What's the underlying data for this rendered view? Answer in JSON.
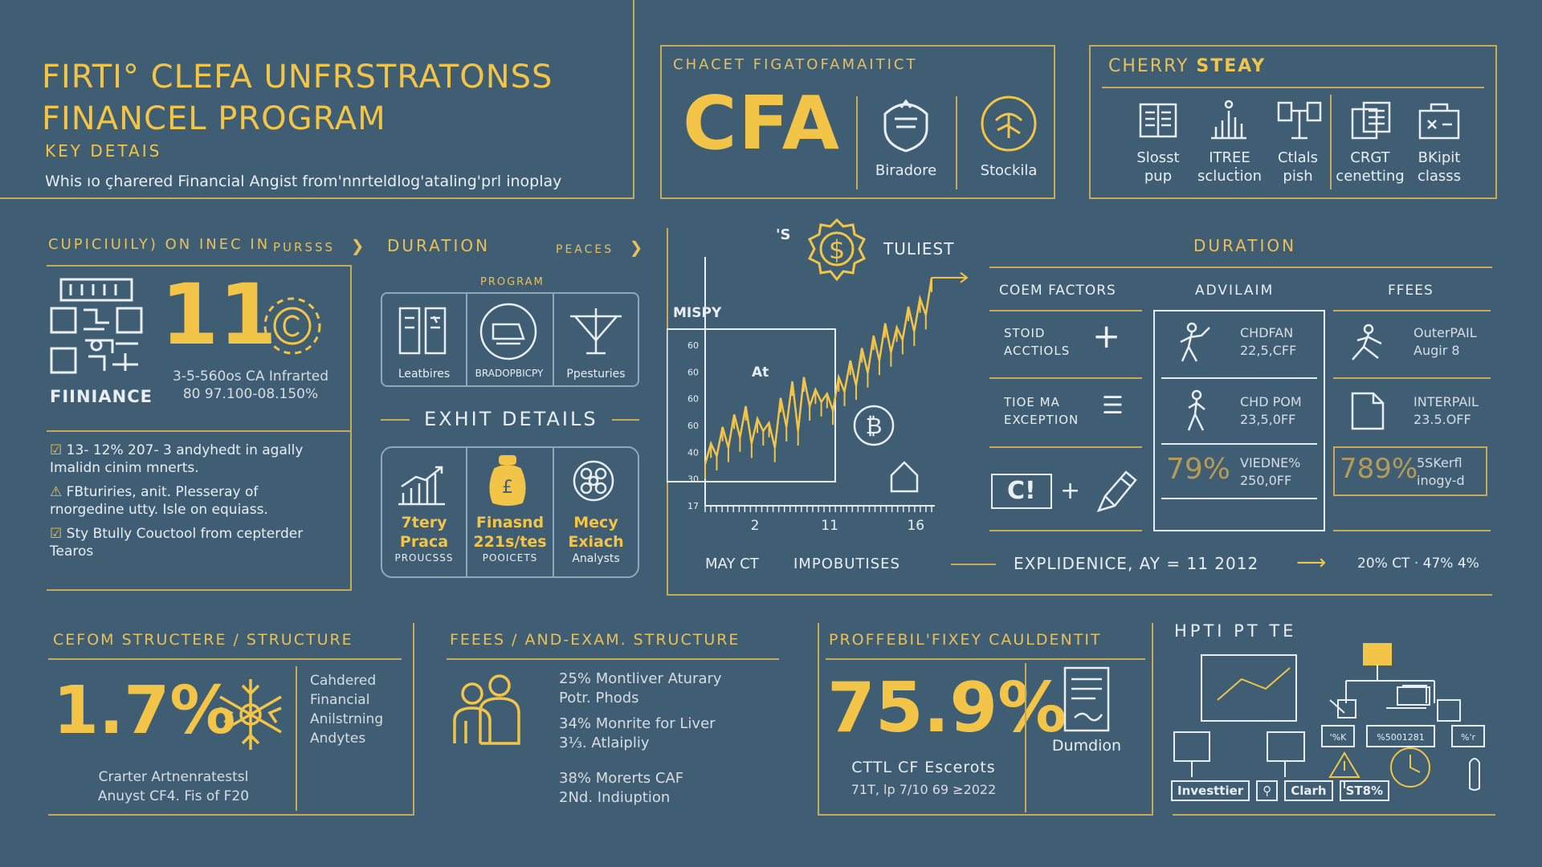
{
  "header": {
    "title_line1": "FIRTI° CLEFA UNFRSTRATONSS",
    "title_line2": "FINANCEL PROGRAM",
    "subtitle": "KEY DETAIS",
    "description": "Whis ıo çharered Financial Angist from'nnrteldlog'ataling'prl inoplay"
  },
  "cfa_panel": {
    "heading": "CHACET FIGATOFAMAITICT",
    "logo": "CFA",
    "items": [
      {
        "icon": "shield-icon",
        "label": "Biradore"
      },
      {
        "icon": "globe-icon",
        "label": "Stockila"
      }
    ]
  },
  "chemistry_panel": {
    "heading_a": "CHERRY",
    "heading_b": "STEAY",
    "items": [
      {
        "icon": "book-icon",
        "line1": "Slosst",
        "line2": "pup"
      },
      {
        "icon": "bar-chart-icon",
        "line1": "ITREE",
        "line2": "sclucṫion"
      },
      {
        "icon": "scale-icon",
        "line1": "Ctlals",
        "line2": "pish"
      },
      {
        "icon": "documents-icon",
        "line1": "CRGT",
        "line2": "cenetting"
      },
      {
        "icon": "case-icon",
        "line1": "BKipit",
        "line2": "classs"
      }
    ]
  },
  "curriculum": {
    "heading": "CUPICIUILY) ON INEC IN",
    "heading_right": "PURSSS",
    "big_number": "11",
    "label": "FIINIANCE",
    "note_line1": "3-5-560os CA Infrarted",
    "note_line2": "80 97.100-08.150%",
    "bullets": [
      {
        "icon": "checkbox-icon",
        "line1": "13- 12% 207- 3 andyhedt in agally",
        "line2": "Imalidn cinim mnerts."
      },
      {
        "icon": "warning-icon",
        "line1": "FBturiries, anit. Plesseray of",
        "line2": "rnorgedine utty. Isle on equiass."
      },
      {
        "icon": "checkbox-icon",
        "line1": "Sty Btully Couctool from cepterder",
        "line2": "Tearos"
      }
    ]
  },
  "duration_left": {
    "heading": "DURATION",
    "heading_right": "PEACES",
    "program_label": "PROGRAM",
    "items": [
      {
        "icon": "columns-icon",
        "label": "Leatbires"
      },
      {
        "icon": "laptop-icon",
        "label": "BRADOPBICPY"
      },
      {
        "icon": "network-icon",
        "label": "Ppesturies"
      }
    ]
  },
  "exhit": {
    "heading": "EXHIT DETAILS",
    "items": [
      {
        "icon": "growth-chart-icon",
        "line1": "7tery",
        "line2": "Praca",
        "line3": "PROUCSSS"
      },
      {
        "icon": "money-bag-icon",
        "line1": "Finasnd",
        "line2": "221s/tes",
        "line3": "POOICETS"
      },
      {
        "icon": "brain-icon",
        "line1": "Mecy",
        "line2": "Exiach",
        "line3": "Analysts"
      }
    ]
  },
  "chart": {
    "top_label_a": "'S",
    "top_label_b": "TULIEST",
    "inner_label": "MISPY",
    "marker_label": "At",
    "y_ticks": [
      "60",
      "60",
      "60",
      "60",
      "40",
      "30",
      "17"
    ],
    "x_ticks": [
      "2",
      "11",
      "16"
    ],
    "x_label_a": "MAY CT",
    "x_label_b": "IMPOBUTISES"
  },
  "chart_data": {
    "type": "line",
    "x": [
      1,
      2,
      3,
      4,
      5,
      6,
      7,
      8,
      9,
      10,
      11,
      12,
      13,
      14,
      15,
      16,
      17,
      18,
      19,
      20,
      21,
      22,
      23,
      24,
      25,
      26,
      27,
      28,
      29,
      30,
      31,
      32,
      33,
      34,
      35,
      36,
      37,
      38,
      39,
      40
    ],
    "series": [
      {
        "values": [
          20,
          30,
          24,
          38,
          28,
          44,
          33,
          48,
          30,
          42,
          36,
          40,
          28,
          52,
          38,
          60,
          36,
          62,
          48,
          56,
          50,
          54,
          46,
          62,
          55,
          70,
          58,
          76,
          64,
          82,
          70,
          88,
          74,
          86,
          80,
          96,
          84,
          100,
          92,
          110
        ]
      }
    ],
    "ylim": [
      0,
      120
    ],
    "x_ticks": [
      "2",
      "11",
      "16"
    ]
  },
  "duration_right": {
    "heading": "DURATION",
    "col1": "COEM FACTORS",
    "col2": "ADVILAIM",
    "col3": "FFEES",
    "factors": [
      {
        "line1": "STOID",
        "line2": "ACCTIOLS",
        "symbol": "+"
      },
      {
        "line1": "TIOE MA",
        "line2": "EXCEPTION",
        "symbol": "☰"
      }
    ],
    "formula_a": "C!",
    "formula_op": "+",
    "advilaim": [
      {
        "icon": "hiker-icon",
        "line1": "CHDFAN",
        "line2": "22,5,CFF"
      },
      {
        "icon": "walker-icon",
        "line1": "CHD POM",
        "line2": "23,5,0FF"
      },
      {
        "big": "79%",
        "line1": "VIEDNE%",
        "line2": "250,0FF"
      }
    ],
    "fees": [
      {
        "icon": "climber-icon",
        "line1": "OuterPAIL",
        "line2": "Augir 8"
      },
      {
        "icon": "page-icon",
        "line1": "INTERPAIL",
        "line2": "23.5.OFF"
      },
      {
        "big": "789%",
        "line1": "5SKerfl",
        "line2": "inogy-d"
      }
    ],
    "experience": "EXPLIDENICE, AY = 11 2012",
    "experience_right": "20% CT · 47% 4%"
  },
  "cefom": {
    "heading": "CEFOM STRUCTERE / STRUCTURE",
    "big": "1.7%",
    "side_lines": [
      "Cahdered",
      "Financial",
      "Anilstrning",
      "Andytes"
    ],
    "note_line1": "Crarter Artnenratestsl",
    "note_line2": "Anuyst CF4. Fis of F20"
  },
  "fees": {
    "heading": "FEEES / AND-EXAM. STRUCTURE",
    "lines": [
      "25% Montliver Aturary",
      "Potr. Phods",
      "34% Monrite for Liver",
      "3⅓. Atlaipliy",
      "38% Morerts CAF",
      "2Nd. Indiuption"
    ]
  },
  "professional": {
    "heading": "PROFFEBIL'FIXEY CAULDENTIT",
    "big": "75.9%",
    "doc_label": "Dumdion",
    "note_line1": "CTTL CF Escerots",
    "note_line2": "71T, lp 7/10 69 ≥2022"
  },
  "network": {
    "heading": "HPTI PT TE",
    "nodes": [
      "'%K",
      "%5001281",
      "%'r"
    ],
    "footer": [
      "Investtier",
      "Clarh",
      "ST8%"
    ]
  }
}
